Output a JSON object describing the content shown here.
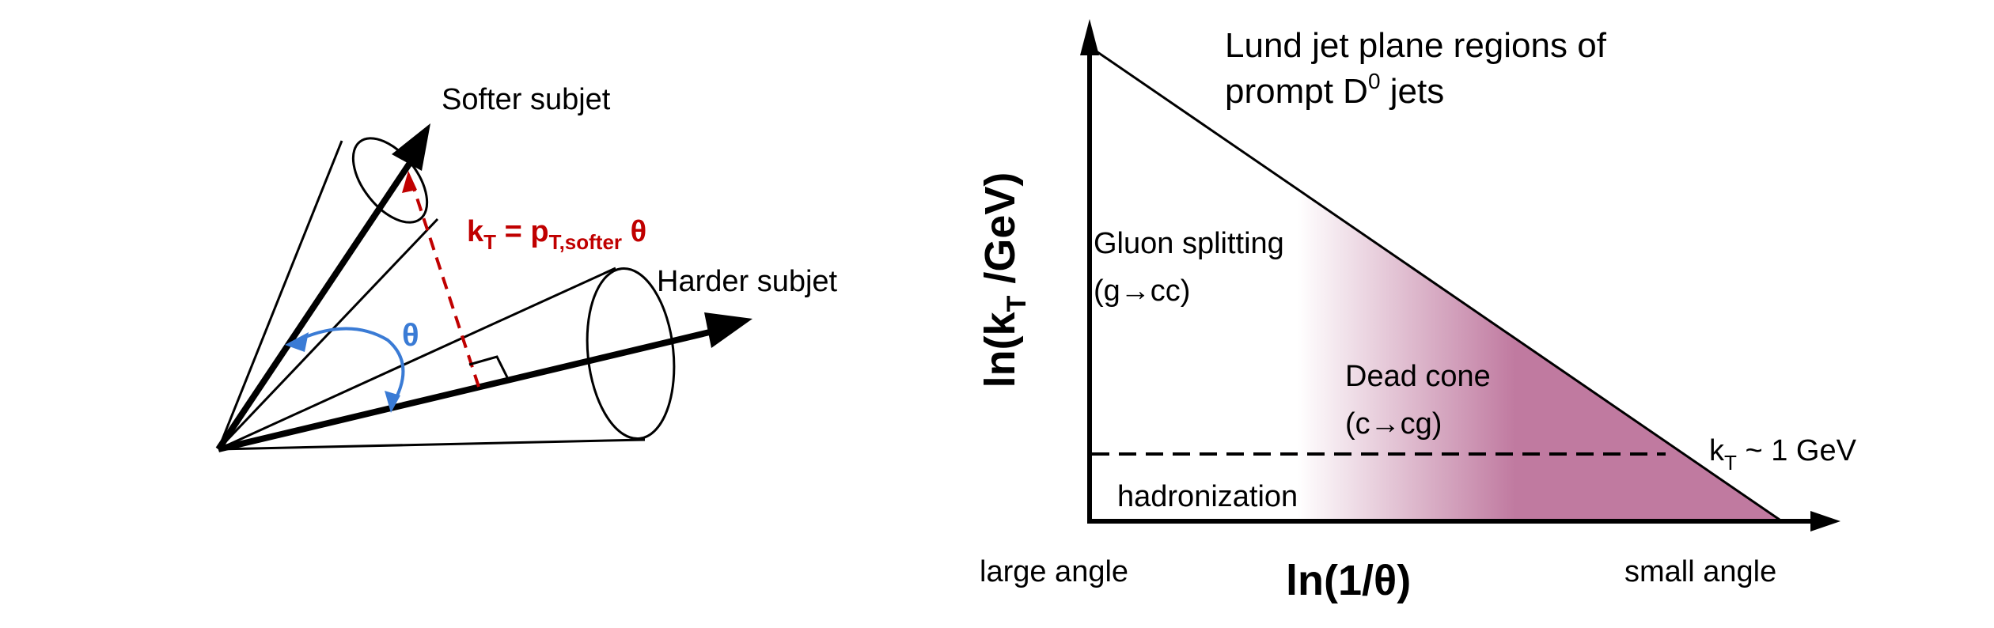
{
  "left_diagram": {
    "softer_label": "Softer subjet",
    "harder_label": "Harder subjet",
    "theta_label": "θ",
    "formula": {
      "k": "k",
      "k_sub": "T",
      "eq": " = p",
      "p_sub": "T,softer",
      "theta": " θ"
    },
    "colors": {
      "formula": "#c00000",
      "theta_arc": "#3a7bd5",
      "lines": "#000000"
    }
  },
  "right_diagram": {
    "title_line1": "Lund jet plane regions of",
    "title_line2_a": "prompt D",
    "title_line2_sup": "0",
    "title_line2_b": " jets",
    "y_axis": {
      "a": "ln(k",
      "sub": "T",
      "b": " /GeV)"
    },
    "x_axis": "ln(1/θ)",
    "x_left": "large angle",
    "x_right": "small angle",
    "gluon_line1": "Gluon splitting",
    "gluon_line2": "(g→cc)",
    "dead_line1": "Dead cone",
    "dead_line2": "(c→cg)",
    "kt_label": {
      "k": "k",
      "sub": "T",
      "rest": " ~ 1 GeV"
    },
    "hadronization": "hadronization",
    "colors": {
      "dead_cone_fill": "#c07aa0"
    }
  }
}
